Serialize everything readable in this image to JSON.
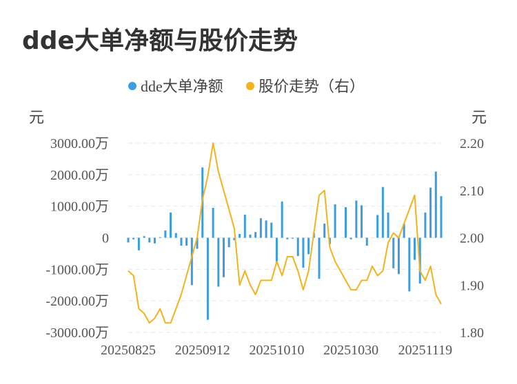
{
  "chart_data": {
    "type": "bar+line",
    "title": "dde大单净额与股价走势",
    "legend": [
      {
        "name": "dde大单净额",
        "color": "#3a9de0"
      },
      {
        "name": "股价走势（右）",
        "color": "#f3b21d"
      }
    ],
    "left_unit": "元",
    "right_unit": "元",
    "left_ylim": [
      -3000,
      3000
    ],
    "right_ylim": [
      1.8,
      2.2
    ],
    "left_ticks": [
      {
        "value": 3000,
        "label": "3000.00万"
      },
      {
        "value": 2000,
        "label": "2000.00万"
      },
      {
        "value": 1000,
        "label": "1000.00万"
      },
      {
        "value": 0,
        "label": "0"
      },
      {
        "value": -1000,
        "label": "-1000.00万"
      },
      {
        "value": -2000,
        "label": "-2000.00万"
      },
      {
        "value": -3000,
        "label": "-3000.00万"
      }
    ],
    "right_ticks": [
      {
        "value": 2.2,
        "label": "2.20"
      },
      {
        "value": 2.1,
        "label": "2.10"
      },
      {
        "value": 2.0,
        "label": "2.00"
      },
      {
        "value": 1.9,
        "label": "1.90"
      },
      {
        "value": 1.8,
        "label": "1.80"
      }
    ],
    "x_tick_labels": [
      {
        "index": 0,
        "label": "20250825"
      },
      {
        "index": 14,
        "label": "20250912"
      },
      {
        "index": 28,
        "label": "20251010"
      },
      {
        "index": 42,
        "label": "20251030"
      },
      {
        "index": 56,
        "label": "20251119"
      }
    ],
    "series": [
      {
        "name": "dde大单净额",
        "type": "bar",
        "unit": "万元",
        "values": [
          -150,
          -50,
          -400,
          50,
          -150,
          -180,
          20,
          230,
          800,
          150,
          -250,
          -250,
          -1500,
          -350,
          2230,
          -2600,
          950,
          -1550,
          -1250,
          -300,
          -80,
          120,
          730,
          100,
          180,
          620,
          550,
          480,
          -800,
          1150,
          -50,
          -30,
          -580,
          -950,
          -520,
          150,
          -1300,
          450,
          -200,
          1060,
          0,
          970,
          -50,
          1180,
          1030,
          -250,
          0,
          720,
          1610,
          800,
          -970,
          -1150,
          450,
          -1700,
          -700,
          -1450,
          800,
          1590,
          2100,
          1320
        ]
      },
      {
        "name": "股价走势",
        "type": "line",
        "unit": "元",
        "values": [
          1.93,
          1.92,
          1.85,
          1.84,
          1.82,
          1.83,
          1.85,
          1.82,
          1.82,
          1.85,
          1.88,
          1.92,
          1.96,
          2.0,
          2.08,
          2.13,
          2.2,
          2.14,
          2.1,
          2.06,
          2.02,
          1.9,
          1.93,
          1.9,
          1.88,
          1.91,
          1.91,
          1.91,
          1.95,
          1.92,
          1.96,
          1.96,
          1.93,
          1.89,
          1.93,
          2.01,
          2.09,
          2.1,
          1.98,
          1.95,
          1.93,
          1.91,
          1.89,
          1.89,
          1.91,
          1.91,
          1.94,
          1.92,
          1.93,
          1.99,
          2.01,
          2.0,
          2.03,
          2.06,
          2.09,
          1.93,
          1.91,
          1.94,
          1.88,
          1.86
        ]
      }
    ]
  }
}
